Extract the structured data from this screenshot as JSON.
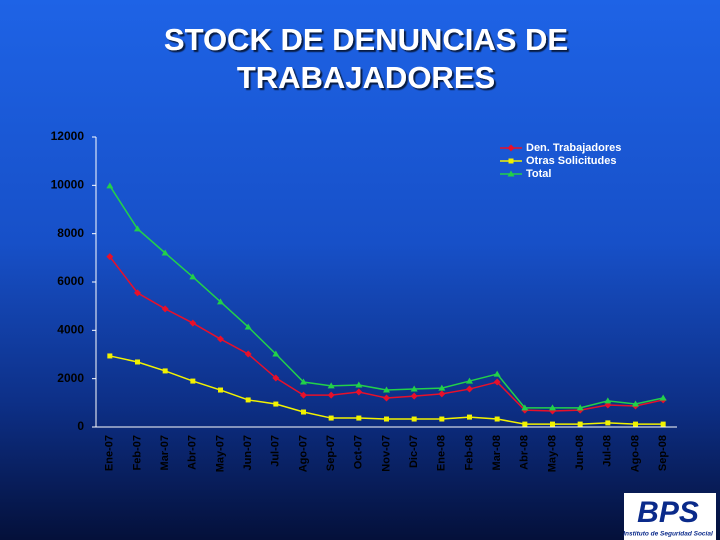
{
  "chart_data": {
    "type": "line",
    "title": "STOCK DE DENUNCIAS DE TRABAJADORES",
    "categories": [
      "Ene-07",
      "Feb-07",
      "Mar-07",
      "Abr-07",
      "May-07",
      "Jun-07",
      "Jul-07",
      "Ago-07",
      "Sep-07",
      "Oct-07",
      "Nov-07",
      "Dic-07",
      "Ene-08",
      "Feb-08",
      "Mar-08",
      "Abr-08",
      "May-08",
      "Jun-08",
      "Jul-08",
      "Ago-08",
      "Sep-08"
    ],
    "series": [
      {
        "name": "Den. Trabajadores",
        "color": "#e8102a",
        "marker": "diamond",
        "values": [
          7050,
          5550,
          4890,
          4300,
          3640,
          3020,
          2030,
          1320,
          1320,
          1450,
          1200,
          1280,
          1370,
          1570,
          1860,
          700,
          660,
          700,
          910,
          870,
          1120
        ]
      },
      {
        "name": "Otras Solicitudes",
        "color": "#f2f200",
        "marker": "square",
        "values": [
          2940,
          2690,
          2320,
          1900,
          1530,
          1120,
          950,
          620,
          370,
          370,
          330,
          330,
          330,
          410,
          330,
          120,
          120,
          120,
          170,
          120,
          120
        ]
      },
      {
        "name": "Total",
        "color": "#22d04a",
        "marker": "triangle",
        "values": [
          9980,
          8200,
          7200,
          6210,
          5180,
          4140,
          3020,
          1860,
          1700,
          1740,
          1530,
          1570,
          1610,
          1900,
          2190,
          790,
          790,
          790,
          1080,
          950,
          1200
        ]
      }
    ],
    "ylim": [
      0,
      12000
    ],
    "yticks": [
      0,
      2000,
      4000,
      6000,
      8000,
      10000,
      12000
    ],
    "grid": false,
    "legend": "top-right"
  },
  "logo": {
    "text": "BPS",
    "subtitle": "Instituto de Seguridad Social"
  }
}
